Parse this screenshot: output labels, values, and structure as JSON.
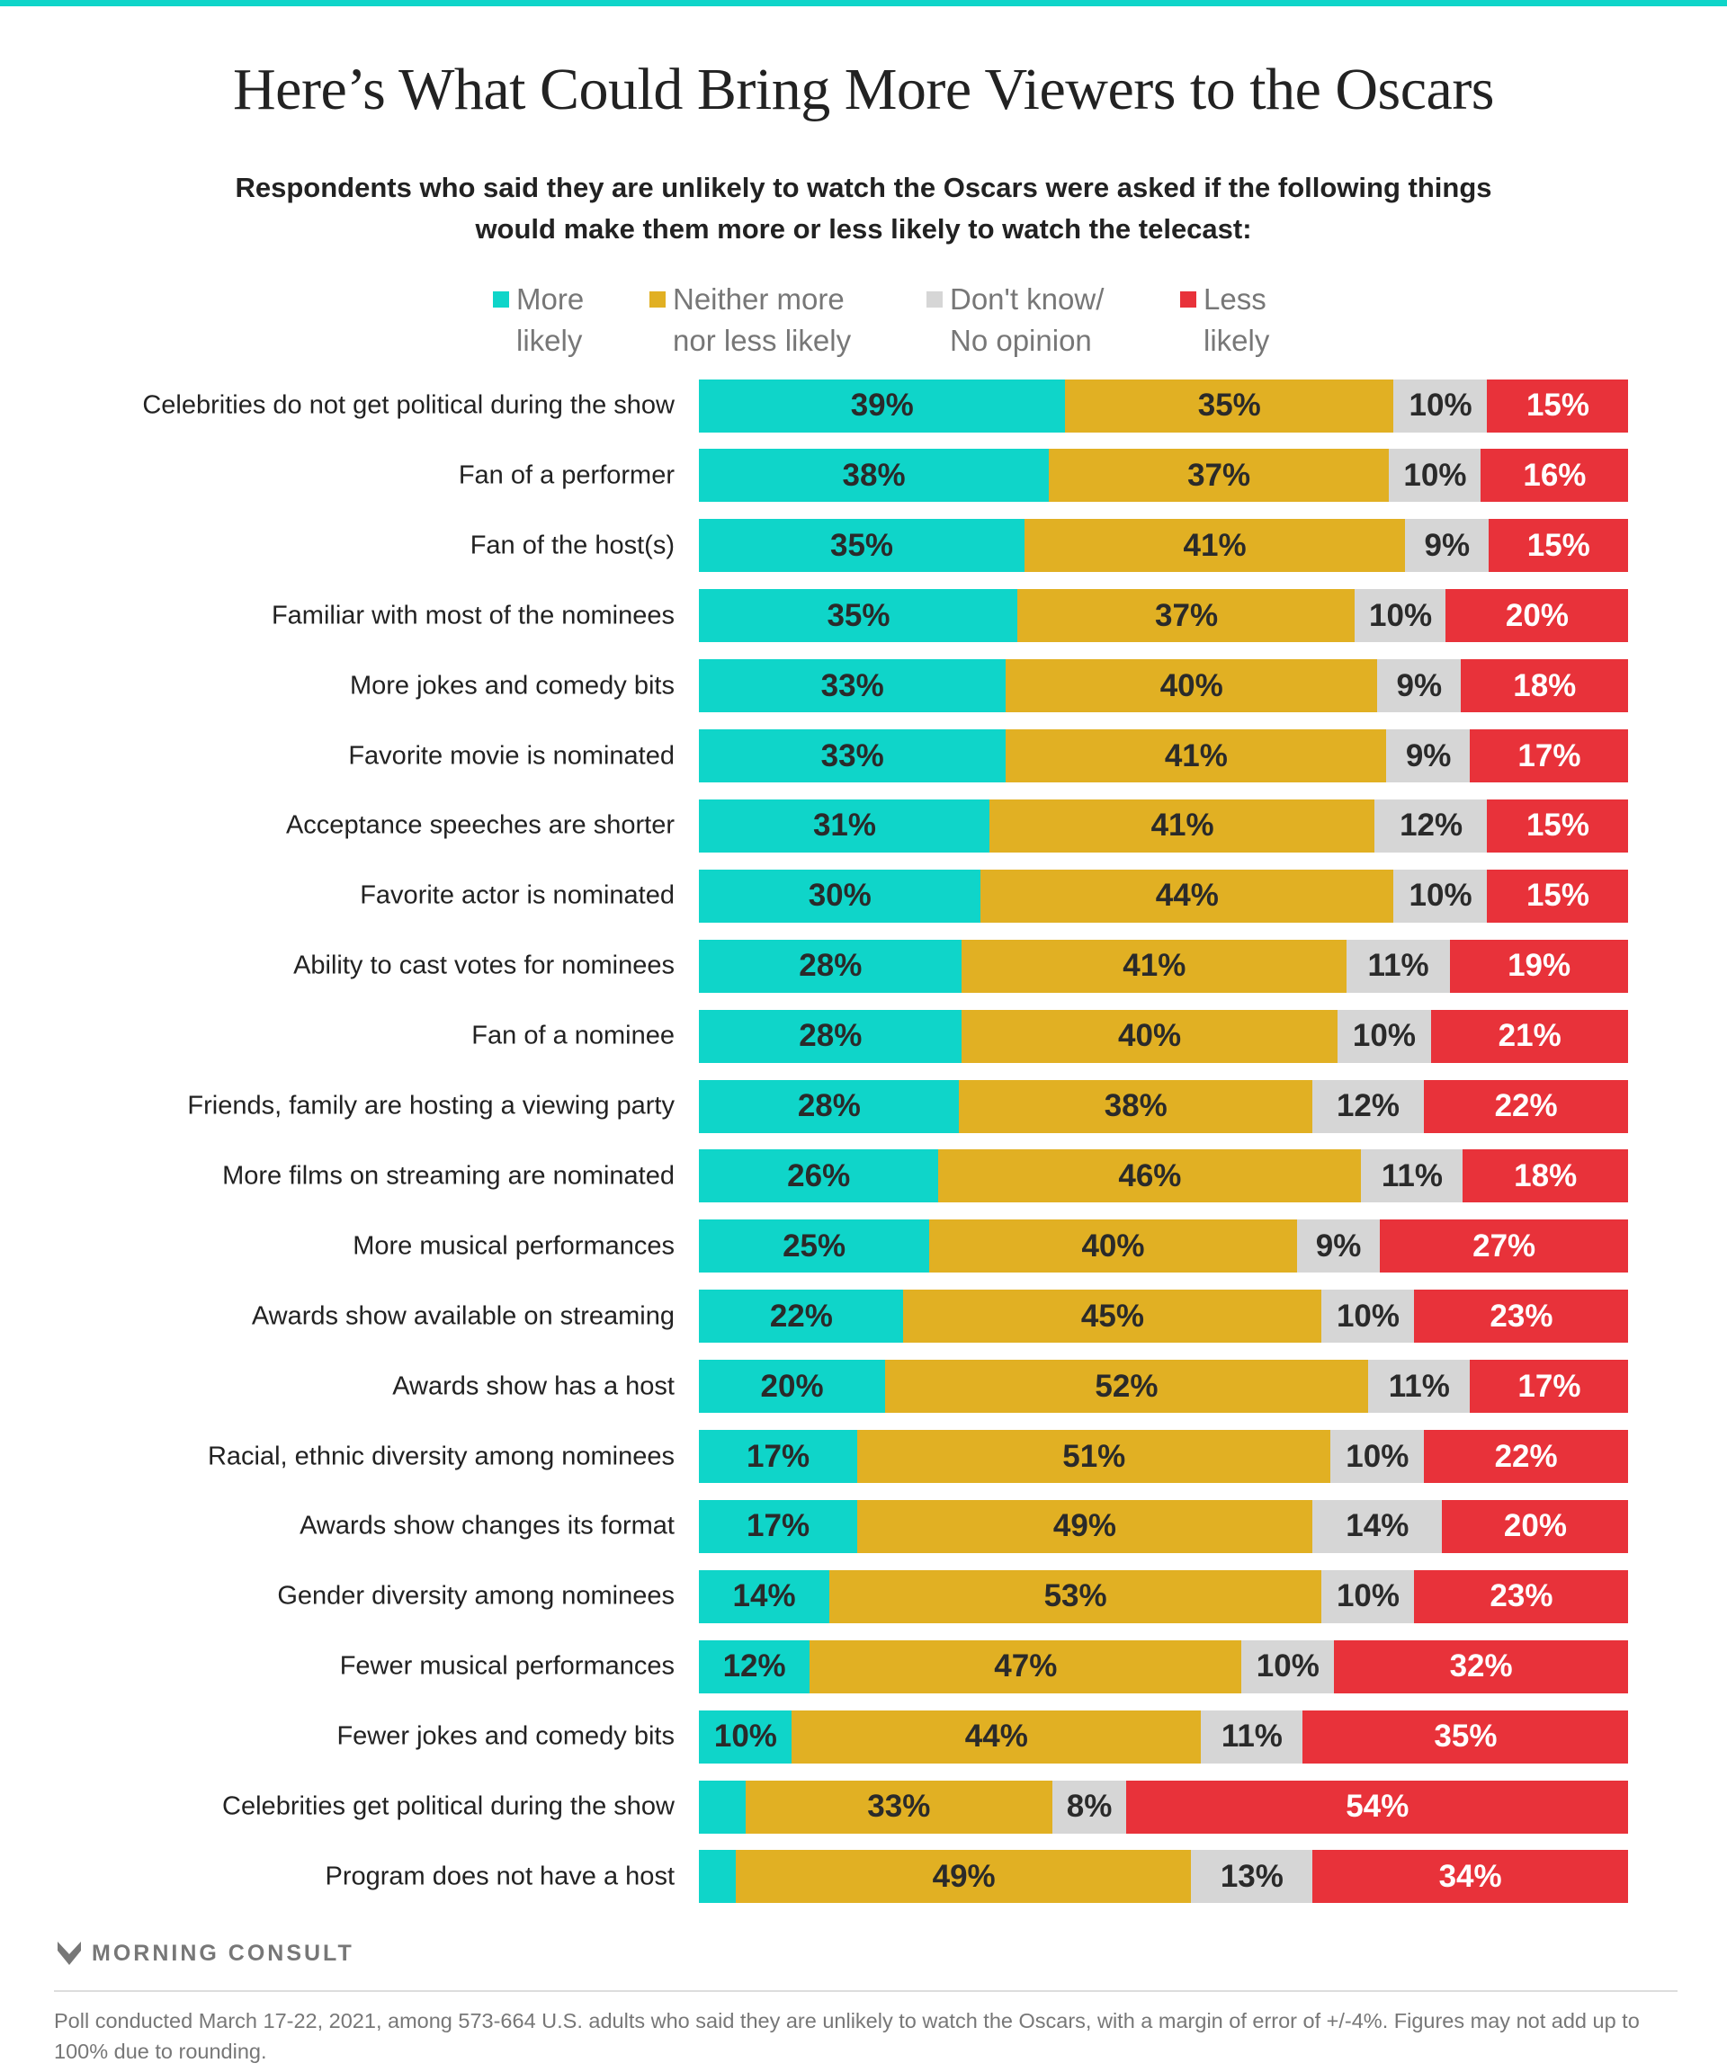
{
  "title": "Here’s What Could Bring More Viewers to the Oscars",
  "subtitle": "Respondents who said they are unlikely to watch the Oscars were asked if the following things would make them more or less likely to watch the telecast:",
  "colors": {
    "more": "#0fd5c9",
    "neither": "#e1b023",
    "dontknow": "#d6d6d6",
    "less": "#e8323a",
    "accent_bar": "#0fd5c9"
  },
  "legend": [
    {
      "label": "More\nlikely",
      "color": "#0fd5c9"
    },
    {
      "label": "Neither more\nnor less likely",
      "color": "#e1b023"
    },
    {
      "label": "Don't know/\nNo opinion",
      "color": "#d6d6d6"
    },
    {
      "label": "Less\nlikely",
      "color": "#e8323a"
    }
  ],
  "chart_data": {
    "type": "bar",
    "orientation": "horizontal",
    "stacked": true,
    "title": "Here’s What Could Bring More Viewers to the Oscars",
    "categories": [
      "Celebrities do not get political during the show",
      "Fan of a performer",
      "Fan of the host(s)",
      "Familiar with most of the nominees",
      "More jokes and comedy bits",
      "Favorite movie is nominated",
      "Acceptance speeches are shorter",
      "Favorite actor is nominated",
      "Ability to cast votes for nominees",
      "Fan of a nominee",
      "Friends, family are hosting a viewing party",
      "More films on streaming are nominated",
      "More musical performances",
      "Awards show available on streaming",
      "Awards show has a host",
      "Racial, ethnic diversity among nominees",
      "Awards show changes its format",
      "Gender diversity among nominees",
      "Fewer musical performances",
      "Fewer jokes and comedy bits",
      "Celebrities get political during the show",
      "Program does not have a host"
    ],
    "series": [
      {
        "name": "More likely",
        "values": [
          39,
          38,
          35,
          35,
          33,
          33,
          31,
          30,
          28,
          28,
          28,
          26,
          25,
          22,
          20,
          17,
          17,
          14,
          12,
          10,
          5,
          4
        ]
      },
      {
        "name": "Neither more nor less likely",
        "values": [
          35,
          37,
          41,
          37,
          40,
          41,
          41,
          44,
          41,
          40,
          38,
          46,
          40,
          45,
          52,
          51,
          49,
          53,
          47,
          44,
          33,
          49
        ]
      },
      {
        "name": "Don't know/ No opinion",
        "values": [
          10,
          10,
          9,
          10,
          9,
          9,
          12,
          10,
          11,
          10,
          12,
          11,
          9,
          10,
          11,
          10,
          14,
          10,
          10,
          11,
          8,
          13
        ]
      },
      {
        "name": "Less likely",
        "values": [
          15,
          16,
          15,
          20,
          18,
          17,
          15,
          15,
          19,
          21,
          22,
          18,
          27,
          23,
          17,
          22,
          20,
          23,
          32,
          35,
          54,
          34
        ]
      }
    ],
    "unit": "%",
    "legend_position": "top",
    "grid": false
  },
  "logo": "MORNING CONSULT",
  "footnote": "Poll conducted March 17-22, 2021, among 573-664 U.S. adults who said they are unlikely to watch the Oscars, with a margin of error of +/-4%. Figures may not add up to 100% due to rounding."
}
